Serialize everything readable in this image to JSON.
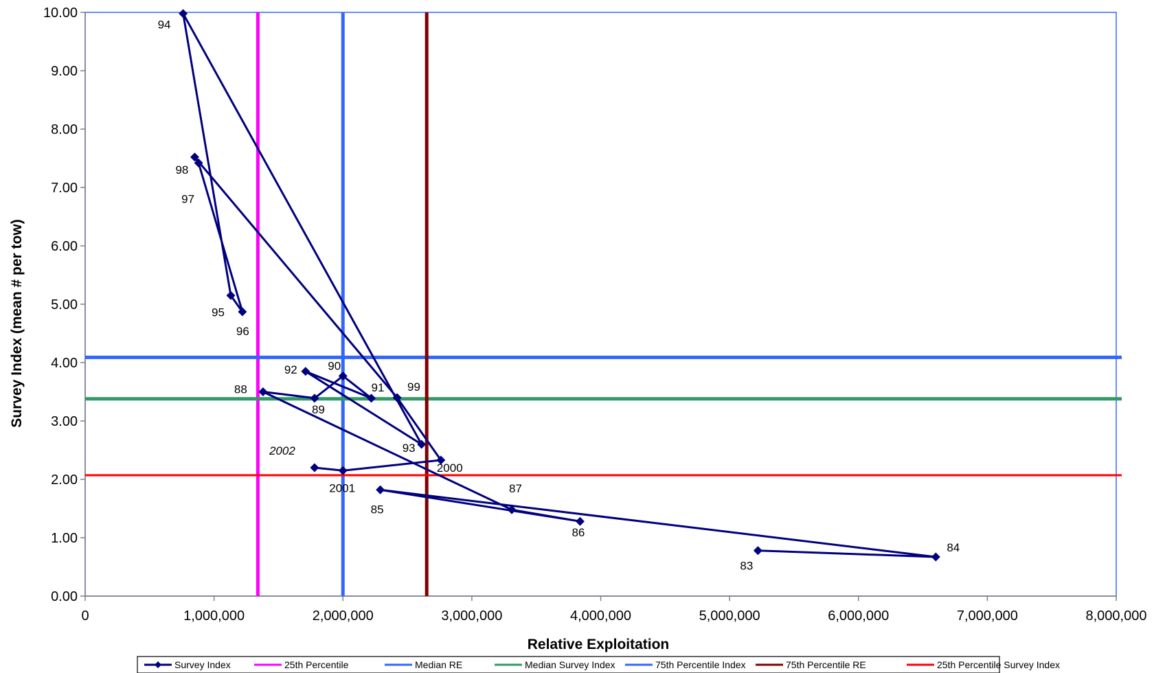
{
  "chart_data": {
    "type": "line",
    "title": "",
    "xlabel": "Relative Exploitation",
    "ylabel": "Survey Index (mean # per tow)",
    "xlim": [
      0,
      8000000
    ],
    "ylim": [
      0,
      10
    ],
    "x_ticks": [
      "0",
      "1,000,000",
      "2,000,000",
      "3,000,000",
      "4,000,000",
      "5,000,000",
      "6,000,000",
      "7,000,000",
      "8,000,000"
    ],
    "y_ticks": [
      "0.00",
      "1.00",
      "2.00",
      "3.00",
      "4.00",
      "5.00",
      "6.00",
      "7.00",
      "8.00",
      "9.00",
      "10.00"
    ],
    "grid": false,
    "legend_position": "bottom",
    "series": [
      {
        "name": "Survey Index",
        "color": "#00007f",
        "marker": "diamond",
        "points": [
          {
            "label": "83",
            "x": 5220000,
            "y": 0.78
          },
          {
            "label": "84",
            "x": 6600000,
            "y": 0.67
          },
          {
            "label": "85",
            "x": 2290000,
            "y": 1.82
          },
          {
            "label": "86",
            "x": 3840000,
            "y": 1.28
          },
          {
            "label": "87",
            "x": 3310000,
            "y": 1.48
          },
          {
            "label": "88",
            "x": 1380000,
            "y": 3.5
          },
          {
            "label": "89",
            "x": 1780000,
            "y": 3.39
          },
          {
            "label": "90",
            "x": 2000000,
            "y": 3.77
          },
          {
            "label": "91",
            "x": 2220000,
            "y": 3.39
          },
          {
            "label": "92",
            "x": 1710000,
            "y": 3.85
          },
          {
            "label": "93",
            "x": 2610000,
            "y": 2.6
          },
          {
            "label": "94",
            "x": 760000,
            "y": 9.98
          },
          {
            "label": "95",
            "x": 1130000,
            "y": 5.15
          },
          {
            "label": "96",
            "x": 1220000,
            "y": 4.87
          },
          {
            "label": "97",
            "x": 880000,
            "y": 7.42
          },
          {
            "label": "98",
            "x": 850000,
            "y": 7.52
          },
          {
            "label": "99",
            "x": 2420000,
            "y": 3.4
          },
          {
            "label": "2000",
            "x": 2760000,
            "y": 2.33
          },
          {
            "label": "2001",
            "x": 2000000,
            "y": 2.15
          },
          {
            "label": "2002",
            "x": 1780000,
            "y": 2.2
          }
        ]
      },
      {
        "name": "25th Percentile",
        "color": "#ff00ff",
        "orientation": "vertical",
        "value": 1340000
      },
      {
        "name": "Median RE",
        "color": "#3366ff",
        "orientation": "vertical",
        "value": 2000000
      },
      {
        "name": "Median Survey Index",
        "color": "#339966",
        "orientation": "horizontal",
        "value": 3.38
      },
      {
        "name": "75th Percentile Index",
        "color": "#3366ff",
        "orientation": "horizontal",
        "value": 4.09
      },
      {
        "name": "75th Percentile RE",
        "color": "#800000",
        "orientation": "vertical",
        "value": 2650000
      },
      {
        "name": "25th Percentile Survey Index",
        "color": "#ff0000",
        "orientation": "horizontal",
        "value": 2.07
      }
    ]
  }
}
